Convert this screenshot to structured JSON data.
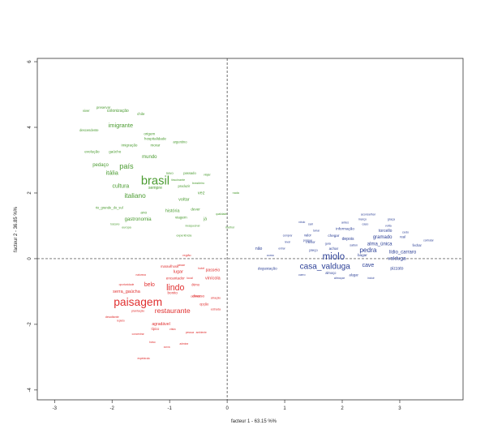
{
  "chart_data": {
    "type": "scatter",
    "xlabel": "facteur 1 - 63.15 %%",
    "ylabel": "facteur 2 - 36.85 %%",
    "xlim": [
      -3.3,
      4.1
    ],
    "ylim": [
      -4.3,
      6.1
    ],
    "x_ticks": [
      -3,
      -2,
      -1,
      0,
      1,
      2,
      3
    ],
    "y_ticks": [
      -4,
      -2,
      0,
      2,
      4,
      6
    ],
    "reference_lines": {
      "x": 0,
      "y": 0,
      "style": "dashed"
    },
    "series": [
      {
        "color": "#4a9b30",
        "points": [
          {
            "label": "brasil",
            "x": -1.25,
            "y": 2.35,
            "size": 3.2
          },
          {
            "label": "país",
            "x": -1.75,
            "y": 2.8,
            "size": 2.0
          },
          {
            "label": "itália",
            "x": -2.0,
            "y": 2.6,
            "size": 1.6
          },
          {
            "label": "italiano",
            "x": -1.6,
            "y": 1.9,
            "size": 1.8
          },
          {
            "label": "cultura",
            "x": -1.85,
            "y": 2.2,
            "size": 1.5
          },
          {
            "label": "imigrante",
            "x": -1.85,
            "y": 4.05,
            "size": 1.6
          },
          {
            "label": "mundo",
            "x": -1.35,
            "y": 3.1,
            "size": 1.3
          },
          {
            "label": "pedaço",
            "x": -2.2,
            "y": 2.85,
            "size": 1.3
          },
          {
            "label": "gastronomia",
            "x": -1.55,
            "y": 1.2,
            "size": 1.3
          },
          {
            "label": "história",
            "x": -0.95,
            "y": 1.45,
            "size": 1.2
          },
          {
            "label": "colonização",
            "x": -1.9,
            "y": 4.5,
            "size": 1.1
          },
          {
            "label": "evolução",
            "x": -2.35,
            "y": 3.25,
            "size": 1.0
          },
          {
            "label": "gaúcho",
            "x": -1.95,
            "y": 3.25,
            "size": 1.0
          },
          {
            "label": "hospitalidade",
            "x": -1.25,
            "y": 3.65,
            "size": 1.0
          },
          {
            "label": "imigração",
            "x": -1.7,
            "y": 3.45,
            "size": 1.0
          },
          {
            "label": "morar",
            "x": -1.25,
            "y": 3.45,
            "size": 1.0
          },
          {
            "label": "argentino",
            "x": -0.82,
            "y": 3.55,
            "size": 0.9
          },
          {
            "label": "descendente",
            "x": -2.4,
            "y": 3.9,
            "size": 0.9
          },
          {
            "label": "preservar",
            "x": -2.15,
            "y": 4.6,
            "size": 0.9
          },
          {
            "label": "chile",
            "x": -1.5,
            "y": 4.4,
            "size": 1.0
          },
          {
            "label": "viver",
            "x": -2.45,
            "y": 4.5,
            "size": 0.9
          },
          {
            "label": "origem",
            "x": -1.35,
            "y": 3.8,
            "size": 1.0
          },
          {
            "label": "sempre",
            "x": -1.25,
            "y": 2.15,
            "size": 1.1
          },
          {
            "label": "voltar",
            "x": -0.75,
            "y": 1.8,
            "size": 1.2
          },
          {
            "label": "vez",
            "x": -0.45,
            "y": 2.0,
            "size": 1.2
          },
          {
            "label": "dever",
            "x": -0.55,
            "y": 1.5,
            "size": 1.0
          },
          {
            "label": "produzir",
            "x": -0.75,
            "y": 2.2,
            "size": 0.9
          },
          {
            "label": "viagem",
            "x": -0.8,
            "y": 1.25,
            "size": 1.0
          },
          {
            "label": "já",
            "x": -0.38,
            "y": 1.2,
            "size": 1.1
          },
          {
            "label": "ano",
            "x": -1.45,
            "y": 1.4,
            "size": 1.0
          },
          {
            "label": "rio_grande_do_sul",
            "x": -2.05,
            "y": 1.55,
            "size": 0.9
          },
          {
            "label": "novo",
            "x": -1.0,
            "y": 2.6,
            "size": 0.9
          },
          {
            "label": "passado",
            "x": -0.65,
            "y": 2.6,
            "size": 0.9
          },
          {
            "label": "brasileiro",
            "x": -0.5,
            "y": 2.3,
            "size": 0.8
          },
          {
            "label": "fascinante",
            "x": -0.85,
            "y": 2.4,
            "size": 0.8
          },
          {
            "label": "viajar",
            "x": -0.35,
            "y": 2.55,
            "size": 0.8
          },
          {
            "label": "nada",
            "x": 0.15,
            "y": 2.0,
            "size": 0.8
          },
          {
            "label": "melhor",
            "x": 0.05,
            "y": 0.95,
            "size": 0.8
          },
          {
            "label": "qualidade",
            "x": -0.1,
            "y": 1.35,
            "size": 0.7
          },
          {
            "label": "experiência",
            "x": -0.75,
            "y": 0.7,
            "size": 0.8
          },
          {
            "label": "europa",
            "x": -1.75,
            "y": 0.95,
            "size": 0.8
          },
          {
            "label": "toscano",
            "x": -1.95,
            "y": 1.05,
            "size": 0.7
          },
          {
            "label": "inesquecível",
            "x": -0.6,
            "y": 1.0,
            "size": 0.7
          }
        ]
      },
      {
        "color": "#e03030",
        "points": [
          {
            "label": "paisagem",
            "x": -1.55,
            "y": -1.35,
            "size": 3.0
          },
          {
            "label": "lindo",
            "x": -0.9,
            "y": -0.9,
            "size": 2.3
          },
          {
            "label": "restaurante",
            "x": -0.95,
            "y": -1.6,
            "size": 1.9
          },
          {
            "label": "belo",
            "x": -1.35,
            "y": -0.8,
            "size": 1.5
          },
          {
            "label": "serra_gaúcha",
            "x": -1.75,
            "y": -1.0,
            "size": 1.2
          },
          {
            "label": "vinícola",
            "x": -0.25,
            "y": -0.6,
            "size": 1.2
          },
          {
            "label": "passeio",
            "x": -0.25,
            "y": -0.35,
            "size": 1.1
          },
          {
            "label": "lugar",
            "x": -0.85,
            "y": -0.4,
            "size": 1.2
          },
          {
            "label": "encantador",
            "x": -0.9,
            "y": -0.6,
            "size": 1.0
          },
          {
            "label": "maravilhoso",
            "x": -1.0,
            "y": -0.25,
            "size": 0.9
          },
          {
            "label": "bonito",
            "x": -0.95,
            "y": -1.05,
            "size": 1.0
          },
          {
            "label": "diverso",
            "x": -0.5,
            "y": -1.15,
            "size": 1.0
          },
          {
            "label": "ótimo",
            "x": -0.55,
            "y": -0.8,
            "size": 0.9
          },
          {
            "label": "agradável",
            "x": -1.15,
            "y": -2.0,
            "size": 1.1
          },
          {
            "label": "típico",
            "x": -1.25,
            "y": -2.15,
            "size": 0.9
          },
          {
            "label": "opção",
            "x": -0.4,
            "y": -1.4,
            "size": 0.9
          },
          {
            "label": "estrada",
            "x": -0.2,
            "y": -1.55,
            "size": 0.8
          },
          {
            "label": "comida",
            "x": -0.55,
            "y": -1.15,
            "size": 0.8
          },
          {
            "label": "atração",
            "x": -0.2,
            "y": -1.2,
            "size": 0.8
          },
          {
            "label": "local",
            "x": -0.65,
            "y": -0.6,
            "size": 0.8
          },
          {
            "label": "plantação",
            "x": -1.55,
            "y": -1.6,
            "size": 0.8
          },
          {
            "label": "desafiante",
            "x": -2.0,
            "y": -1.78,
            "size": 0.8
          },
          {
            "label": "vista",
            "x": -0.95,
            "y": -2.15,
            "size": 0.8
          },
          {
            "label": "hotel",
            "x": -0.45,
            "y": -0.3,
            "size": 0.8
          },
          {
            "label": "pessoa",
            "x": -0.65,
            "y": -2.25,
            "size": 0.7
          },
          {
            "label": "ambiente",
            "x": -0.45,
            "y": -2.25,
            "size": 0.7
          },
          {
            "label": "bolso",
            "x": -1.3,
            "y": -2.55,
            "size": 0.7
          },
          {
            "label": "curva",
            "x": -1.05,
            "y": -2.7,
            "size": 0.7
          },
          {
            "label": "admirar",
            "x": -0.75,
            "y": -2.6,
            "size": 0.7
          },
          {
            "label": "espetáculo",
            "x": -1.45,
            "y": -3.05,
            "size": 0.7
          },
          {
            "label": "oportunidade",
            "x": -1.75,
            "y": -0.8,
            "size": 0.7
          },
          {
            "label": "natureza",
            "x": -1.5,
            "y": -0.5,
            "size": 0.7
          },
          {
            "label": "concentrar",
            "x": -1.55,
            "y": -2.3,
            "size": 0.7
          },
          {
            "label": "repleto",
            "x": -1.85,
            "y": -1.9,
            "size": 0.7
          },
          {
            "label": "passar",
            "x": -0.8,
            "y": -0.2,
            "size": 0.7
          },
          {
            "label": "região",
            "x": -0.7,
            "y": 0.1,
            "size": 0.8
          }
        ]
      },
      {
        "color": "#2b3f96",
        "points": [
          {
            "label": "miolo",
            "x": 1.85,
            "y": 0.05,
            "size": 2.5
          },
          {
            "label": "casa_valduga",
            "x": 1.7,
            "y": -0.25,
            "size": 2.2
          },
          {
            "label": "pedra",
            "x": 2.45,
            "y": 0.25,
            "size": 1.8
          },
          {
            "label": "cave",
            "x": 2.45,
            "y": -0.2,
            "size": 1.5
          },
          {
            "label": "valduga",
            "x": 2.95,
            "y": 0.0,
            "size": 1.4
          },
          {
            "label": "lídio_carraro",
            "x": 3.05,
            "y": 0.2,
            "size": 1.3
          },
          {
            "label": "gramado",
            "x": 2.7,
            "y": 0.65,
            "size": 1.3
          },
          {
            "label": "alma_única",
            "x": 2.65,
            "y": 0.45,
            "size": 1.3
          },
          {
            "label": "torcello",
            "x": 2.75,
            "y": 0.85,
            "size": 1.1
          },
          {
            "label": "depois",
            "x": 2.1,
            "y": 0.6,
            "size": 1.1
          },
          {
            "label": "pizzato",
            "x": 2.95,
            "y": -0.3,
            "size": 1.1
          },
          {
            "label": "achar",
            "x": 1.85,
            "y": 0.3,
            "size": 1.0
          },
          {
            "label": "bagar",
            "x": 2.35,
            "y": 0.1,
            "size": 1.0
          },
          {
            "label": "não",
            "x": 0.55,
            "y": 0.3,
            "size": 1.1
          },
          {
            "label": "degustação",
            "x": 0.7,
            "y": -0.3,
            "size": 1.0
          },
          {
            "label": "informação",
            "x": 2.05,
            "y": 0.9,
            "size": 1.0
          },
          {
            "label": "chegar",
            "x": 1.85,
            "y": 0.7,
            "size": 1.0
          },
          {
            "label": "valor",
            "x": 1.4,
            "y": 0.7,
            "size": 0.9
          },
          {
            "label": "menor",
            "x": 1.45,
            "y": 0.5,
            "size": 0.9
          },
          {
            "label": "preço",
            "x": 1.5,
            "y": 0.25,
            "size": 0.9
          },
          {
            "label": "guia",
            "x": 1.75,
            "y": 0.45,
            "size": 0.8
          },
          {
            "label": "almoço",
            "x": 1.8,
            "y": -0.45,
            "size": 0.9
          },
          {
            "label": "alugar",
            "x": 2.2,
            "y": -0.5,
            "size": 0.9
          },
          {
            "label": "almoçar",
            "x": 1.95,
            "y": -0.6,
            "size": 0.8
          },
          {
            "label": "fechar",
            "x": 3.3,
            "y": 0.4,
            "size": 0.9
          },
          {
            "label": "real",
            "x": 3.05,
            "y": 0.65,
            "size": 0.9
          },
          {
            "label": "cedo",
            "x": 3.1,
            "y": 0.8,
            "size": 0.8
          },
          {
            "label": "volta",
            "x": 2.8,
            "y": 1.0,
            "size": 0.8
          },
          {
            "label": "graça",
            "x": 2.85,
            "y": 1.2,
            "size": 0.8
          },
          {
            "label": "aconselhar",
            "x": 2.45,
            "y": 1.35,
            "size": 0.8
          },
          {
            "label": "caso",
            "x": 2.4,
            "y": 1.05,
            "size": 0.8
          },
          {
            "label": "março",
            "x": 2.35,
            "y": 1.2,
            "size": 0.8
          },
          {
            "label": "antes",
            "x": 2.05,
            "y": 1.1,
            "size": 0.8
          },
          {
            "label": "sair",
            "x": 1.45,
            "y": 1.05,
            "size": 0.8
          },
          {
            "label": "rótulo",
            "x": 1.3,
            "y": 1.1,
            "size": 0.7
          },
          {
            "label": "tomar",
            "x": 1.55,
            "y": 0.85,
            "size": 0.7
          },
          {
            "label": "comprar",
            "x": 1.05,
            "y": 0.7,
            "size": 0.7
          },
          {
            "label": "levar",
            "x": 1.05,
            "y": 0.5,
            "size": 0.7
          },
          {
            "label": "porque",
            "x": 1.4,
            "y": 0.55,
            "size": 0.8
          },
          {
            "label": "entrar",
            "x": 0.95,
            "y": 0.3,
            "size": 0.7
          },
          {
            "label": "como",
            "x": 0.75,
            "y": 0.1,
            "size": 0.8
          },
          {
            "label": "carro",
            "x": 1.3,
            "y": -0.5,
            "size": 0.8
          },
          {
            "label": "incluir",
            "x": 2.5,
            "y": -0.6,
            "size": 0.7
          },
          {
            "label": "contratar",
            "x": 3.5,
            "y": 0.55,
            "size": 0.7
          },
          {
            "label": "salton",
            "x": 2.2,
            "y": 0.4,
            "size": 0.8
          }
        ]
      }
    ]
  }
}
